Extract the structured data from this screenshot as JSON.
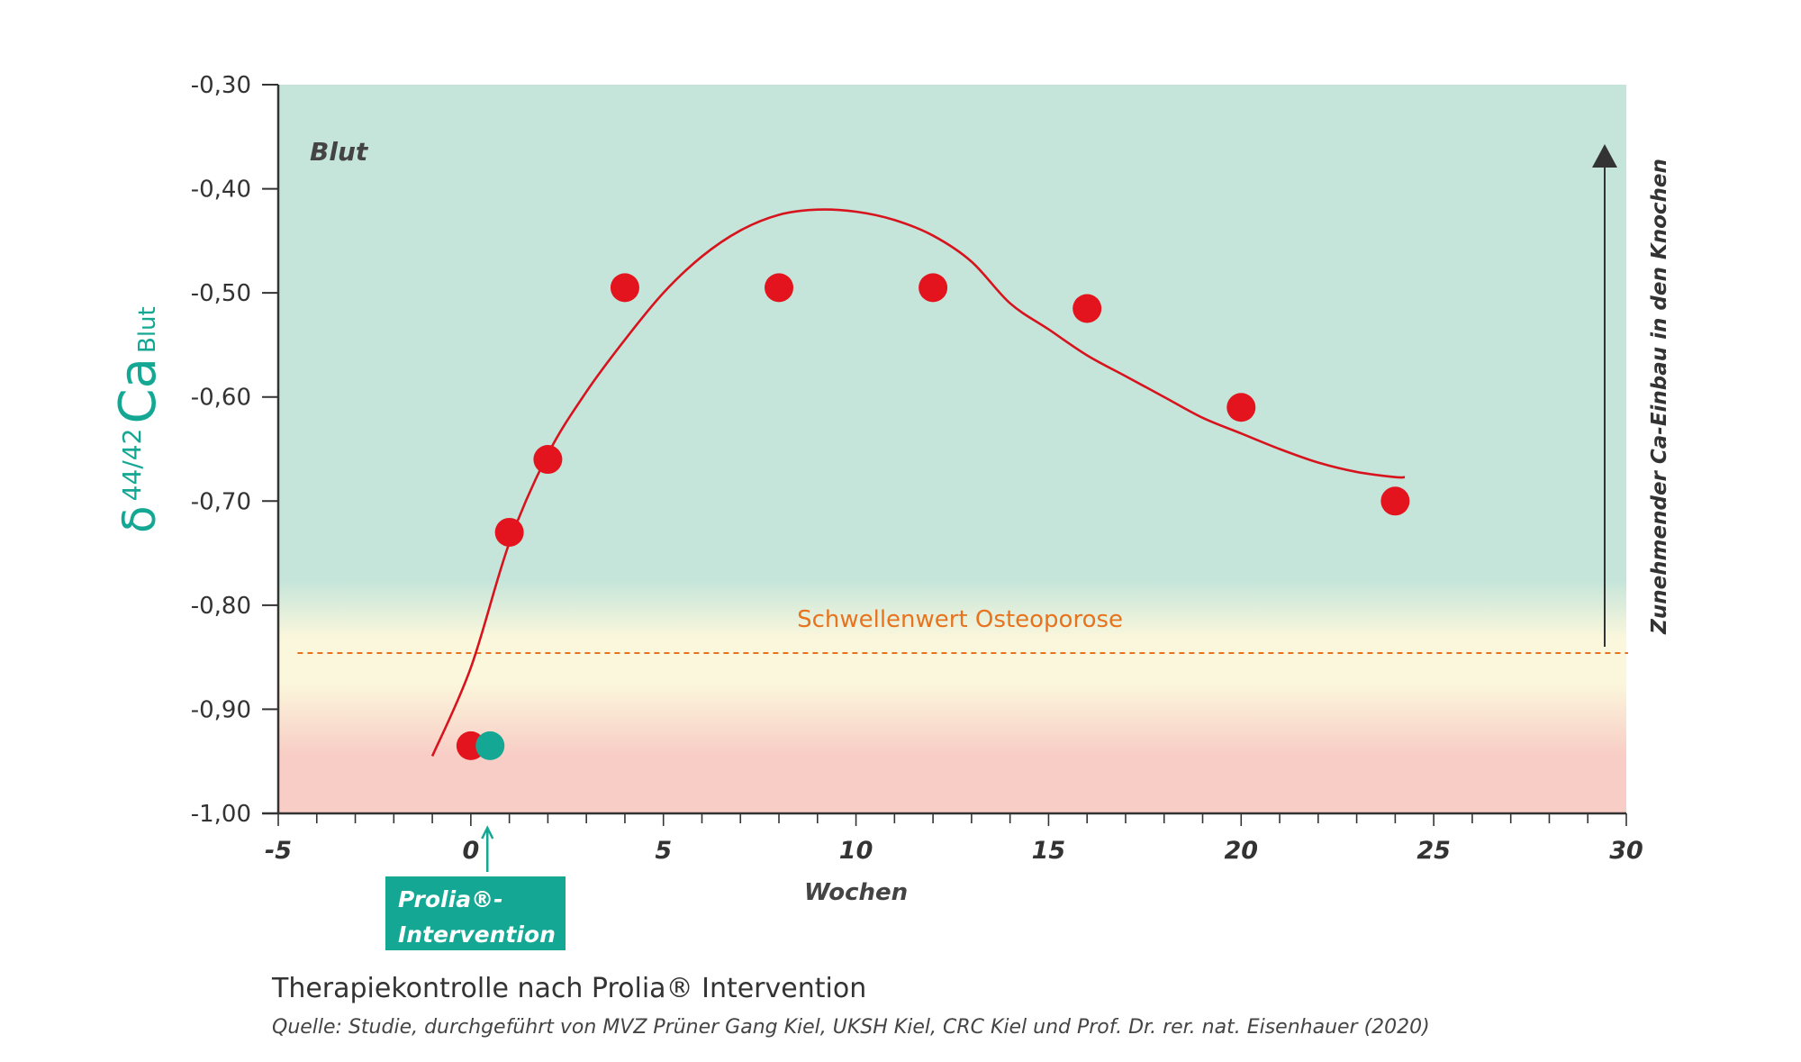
{
  "chart_data": {
    "type": "scatter",
    "x": [
      0,
      1,
      2,
      4,
      8,
      12,
      16,
      20,
      24
    ],
    "y": [
      -0.935,
      -0.73,
      -0.66,
      -0.495,
      -0.495,
      -0.495,
      -0.515,
      -0.61,
      -0.7
    ],
    "extra_point": {
      "x": 0.5,
      "y": -0.935
    },
    "fit_curve": {
      "x": [
        -1,
        0,
        1,
        2,
        3,
        4,
        5,
        6,
        7,
        8,
        9,
        10,
        11,
        12,
        13,
        14,
        15,
        16,
        17,
        18,
        19,
        20,
        21,
        22,
        23,
        24,
        24.25
      ],
      "y": [
        -0.945,
        -0.86,
        -0.74,
        -0.655,
        -0.595,
        -0.545,
        -0.5,
        -0.465,
        -0.44,
        -0.425,
        -0.42,
        -0.422,
        -0.43,
        -0.445,
        -0.47,
        -0.51,
        -0.535,
        -0.56,
        -0.58,
        -0.6,
        -0.62,
        -0.635,
        -0.65,
        -0.663,
        -0.672,
        -0.677,
        -0.677
      ]
    },
    "threshold": {
      "y": -0.846,
      "label": "Schwellenwert Osteoporose"
    },
    "xlim": [
      -5,
      30
    ],
    "ylim": [
      -1.0,
      -0.3
    ],
    "x_ticks": [
      "-5",
      "0",
      "5",
      "10",
      "15",
      "20",
      "25",
      "30"
    ],
    "x_tick_values": [
      -5,
      0,
      5,
      10,
      15,
      20,
      25,
      30
    ],
    "y_ticks": [
      "-0,30",
      "-0,40",
      "-0,50",
      "-0,60",
      "-0,70",
      "-0,80",
      "-0,90",
      "-1,00"
    ],
    "y_tick_values": [
      -0.3,
      -0.4,
      -0.5,
      -0.6,
      -0.7,
      -0.8,
      -0.9,
      -1.0
    ],
    "xlabel": "Wochen",
    "ylabel_main": "δ",
    "ylabel_sup": "44/42",
    "ylabel_ca": "Ca",
    "ylabel_sub": "Blut",
    "region_label": "Blut",
    "right_label": "Zunehmender Ca-Einbau in den Knochen",
    "grid": false,
    "colors": {
      "point": "#e3141e",
      "extra_point": "#14a894",
      "curve": "#d7141e",
      "threshold": "#e8731e",
      "axis": "#333333",
      "teal": "#14a894",
      "bg_top": "#c5e5da",
      "bg_mid": "#fbf7dc",
      "bg_bottom": "#f8cdc5"
    }
  },
  "intervention": {
    "line1": "Prolia®-",
    "line2": "Intervention"
  },
  "caption": {
    "title": "Therapiekontrolle nach Prolia® Intervention",
    "source": "Quelle: Studie, durchgeführt von MVZ Prüner Gang Kiel, UKSH Kiel, CRC Kiel und Prof. Dr. rer. nat. Eisenhauer (2020)"
  }
}
